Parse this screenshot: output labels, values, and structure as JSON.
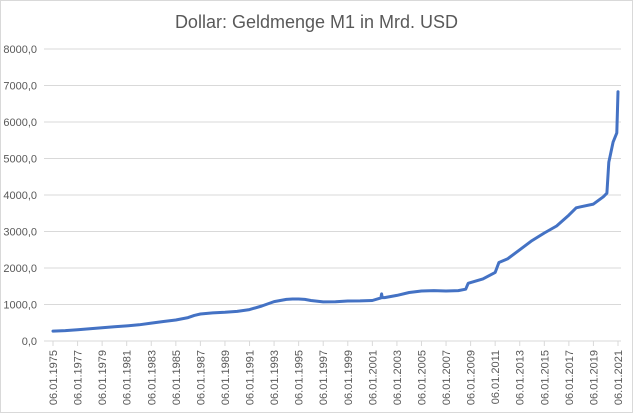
{
  "chart_data": {
    "type": "line",
    "title": "Dollar: Geldmenge M1 in Mrd. USD",
    "xlabel": "",
    "ylabel": "",
    "ylim": [
      0,
      8000
    ],
    "yticks": [
      "0,0",
      "1000,0",
      "2000,0",
      "3000,0",
      "4000,0",
      "5000,0",
      "6000,0",
      "7000,0",
      "8000,0"
    ],
    "xtick_labels": [
      "06.01.1975",
      "06.01.1977",
      "06.01.1979",
      "06.01.1981",
      "06.01.1983",
      "06.01.1985",
      "06.01.1987",
      "06.01.1989",
      "06.01.1991",
      "06.01.1993",
      "06.01.1995",
      "06.01.1997",
      "06.01.1999",
      "06.01.2001",
      "06.01.2003",
      "06.01.2005",
      "06.01.2007",
      "06.01.2009",
      "06.01.2011",
      "06.01.2013",
      "06.01.2015",
      "06.01.2017",
      "06.01.2019",
      "06.01.2021"
    ],
    "grid": "horizontal",
    "legend": "none",
    "series": [
      {
        "name": "Geldmenge M1",
        "color": "#4472c4",
        "x": [
          1975.0,
          1976.0,
          1977.0,
          1978.0,
          1979.0,
          1980.0,
          1981.0,
          1982.0,
          1983.0,
          1984.0,
          1985.0,
          1986.0,
          1986.5,
          1987.0,
          1988.0,
          1989.0,
          1990.0,
          1991.0,
          1992.0,
          1993.0,
          1994.0,
          1994.5,
          1995.0,
          1995.5,
          1996.0,
          1997.0,
          1998.0,
          1999.0,
          2000.0,
          2001.0,
          2001.7,
          2001.75,
          2001.8,
          2002.0,
          2003.0,
          2004.0,
          2005.0,
          2006.0,
          2007.0,
          2008.0,
          2008.6,
          2008.8,
          2009.0,
          2010.0,
          2011.0,
          2011.3,
          2012.0,
          2013.0,
          2014.0,
          2015.0,
          2016.0,
          2017.0,
          2017.6,
          2018.0,
          2019.0,
          2019.8,
          2020.1,
          2020.25,
          2020.35,
          2020.6,
          2020.9,
          2021.0
        ],
        "values": [
          270,
          285,
          310,
          335,
          365,
          390,
          415,
          445,
          490,
          535,
          575,
          640,
          700,
          740,
          770,
          785,
          810,
          860,
          960,
          1080,
          1140,
          1150,
          1150,
          1140,
          1110,
          1070,
          1075,
          1095,
          1100,
          1110,
          1180,
          1290,
          1190,
          1190,
          1250,
          1330,
          1370,
          1380,
          1370,
          1380,
          1420,
          1580,
          1600,
          1700,
          1880,
          2150,
          2250,
          2500,
          2750,
          2960,
          3150,
          3450,
          3650,
          3680,
          3750,
          3950,
          4050,
          4900,
          5050,
          5450,
          5700,
          6830
        ]
      }
    ]
  }
}
